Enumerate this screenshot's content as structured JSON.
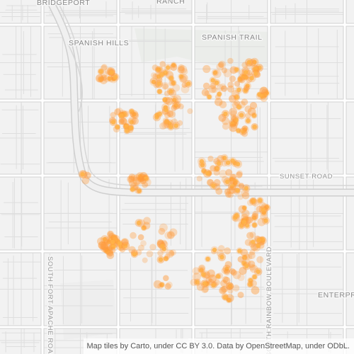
{
  "map": {
    "tile_provider_note": "Carto light basemap",
    "colors": {
      "background": "#f2f2f2",
      "road": "#ffffff",
      "road_casing": "#d4d4d4",
      "freeway": "#e9e9e9",
      "park": "#e9ebe8",
      "label": "#8a8a8a",
      "point_fill": "#ff9a3a",
      "point_core": "#ffb347"
    },
    "labels": {
      "bridgeport": "BRIDGEPORT",
      "ranch": "RANCH",
      "spanish_hills": "SPANISH HILLS",
      "spanish_trail": "SPANISH TRAIL",
      "sunset_road": "SUNSET ROAD",
      "enterprise": "ENTERPR",
      "south_fort_apache_road": "SOUTH FORT APACHE ROAD",
      "south_rainbow_boulevard": "SOUTH RAINBOW BOULEVARD"
    },
    "attribution": "Map tiles by Carto, under CC BY 3.0. Data by OpenStreetMap, under ODbL."
  }
}
